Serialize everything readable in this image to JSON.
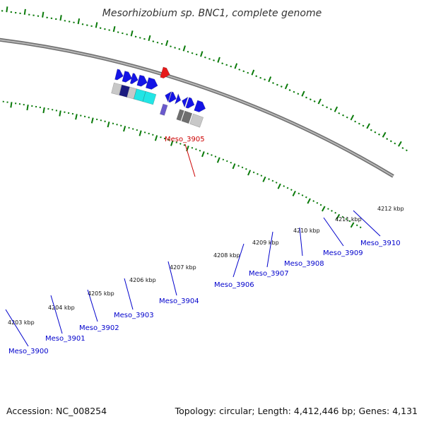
{
  "title": "Mesorhizobium sp. BNC1, complete genome",
  "footer": {
    "accession": "Accession: NC_008254",
    "summary": "Topology: circular; Length: 4,412,446 bp; Genes: 4,131"
  },
  "colors": {
    "forward_gene": "#1414e6",
    "highlight": "#e61a1a",
    "cyan": "#22e5e5",
    "grey_light": "#c8c8c8",
    "grey_dark": "#6e6e6e",
    "purple": "#6a5acd",
    "navy": "#1c1c80",
    "tick": "#0a7a0a",
    "backbone": "#8a8a8a",
    "label_blue": "#0000cc",
    "label_red": "#cc0000"
  },
  "kbp_labels": [
    "4203 kbp",
    "4204 kbp",
    "4205 kbp",
    "4206 kbp",
    "4207 kbp",
    "4208 kbp",
    "4209 kbp",
    "4210 kbp",
    "4211 kbp",
    "4212 kbp"
  ],
  "gene_labels": [
    {
      "name": "Meso_3900",
      "color": "blue"
    },
    {
      "name": "Meso_3901",
      "color": "blue"
    },
    {
      "name": "Meso_3902",
      "color": "blue"
    },
    {
      "name": "Meso_3903",
      "color": "blue"
    },
    {
      "name": "Meso_3904",
      "color": "blue"
    },
    {
      "name": "Meso_3905",
      "color": "red"
    },
    {
      "name": "Meso_3906",
      "color": "blue"
    },
    {
      "name": "Meso_3907",
      "color": "blue"
    },
    {
      "name": "Meso_3908",
      "color": "blue"
    },
    {
      "name": "Meso_3909",
      "color": "blue"
    },
    {
      "name": "Meso_3910",
      "color": "blue"
    }
  ]
}
